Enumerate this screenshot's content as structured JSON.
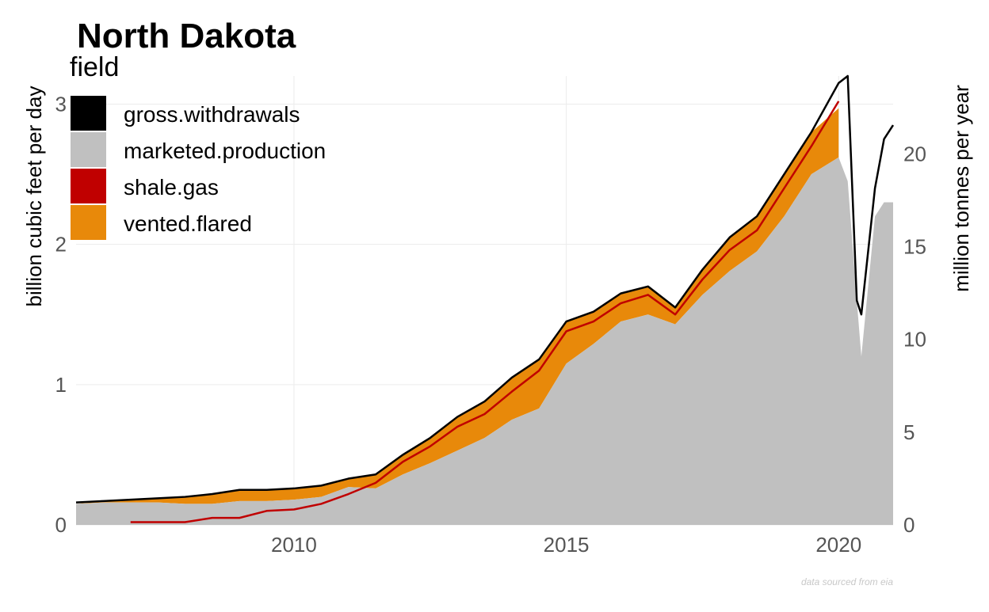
{
  "chart_data": {
    "type": "area",
    "title": "North Dakota",
    "legend_title": "field",
    "legend_position": "top-left",
    "ylabel": "billion cubic feet per day",
    "ylabel_right": "million tonnes per year",
    "caption": "data sourced from eia",
    "x_ticks": [
      "2010",
      "2015",
      "2020"
    ],
    "y_ticks": [
      "0",
      "1",
      "2",
      "3"
    ],
    "y_ticks_right": [
      "0",
      "5",
      "10",
      "15",
      "20"
    ],
    "xlim": [
      "2006-01",
      "2021-01"
    ],
    "ylim": [
      0,
      3.2
    ],
    "ylim_right": [
      0,
      24.2
    ],
    "grid": true,
    "colors": {
      "gross.withdrawals": "#000000",
      "marketed.production": "#c0c0c0",
      "shale.gas": "#c00000",
      "vented.flared": "#e8890a"
    },
    "series": [
      {
        "name": "gross.withdrawals",
        "style": "line",
        "x": [
          "2006-01",
          "2006-07",
          "2007-01",
          "2007-07",
          "2008-01",
          "2008-07",
          "2009-01",
          "2009-07",
          "2010-01",
          "2010-07",
          "2011-01",
          "2011-07",
          "2012-01",
          "2012-07",
          "2013-01",
          "2013-07",
          "2014-01",
          "2014-07",
          "2015-01",
          "2015-07",
          "2016-01",
          "2016-07",
          "2017-01",
          "2017-07",
          "2018-01",
          "2018-07",
          "2019-01",
          "2019-07",
          "2020-01",
          "2020-03",
          "2020-05",
          "2020-06",
          "2020-09",
          "2020-11",
          "2021-01"
        ],
        "values": [
          0.16,
          0.17,
          0.18,
          0.19,
          0.2,
          0.22,
          0.25,
          0.25,
          0.26,
          0.28,
          0.33,
          0.36,
          0.5,
          0.62,
          0.77,
          0.88,
          1.05,
          1.18,
          1.45,
          1.52,
          1.65,
          1.7,
          1.55,
          1.82,
          2.05,
          2.2,
          2.5,
          2.8,
          3.15,
          3.2,
          1.6,
          1.5,
          2.4,
          2.75,
          2.85
        ]
      },
      {
        "name": "vented.flared",
        "style": "area",
        "x": [
          "2006-01",
          "2006-07",
          "2007-01",
          "2007-07",
          "2008-01",
          "2008-07",
          "2009-01",
          "2009-07",
          "2010-01",
          "2010-07",
          "2011-01",
          "2011-07",
          "2012-01",
          "2012-07",
          "2013-01",
          "2013-07",
          "2014-01",
          "2014-07",
          "2015-01",
          "2015-07",
          "2016-01",
          "2016-07",
          "2017-01",
          "2017-07",
          "2018-01",
          "2018-07",
          "2019-01",
          "2019-07",
          "2020-01"
        ],
        "values": [
          0.0,
          0.01,
          0.02,
          0.03,
          0.05,
          0.07,
          0.08,
          0.08,
          0.08,
          0.08,
          0.06,
          0.1,
          0.14,
          0.18,
          0.24,
          0.26,
          0.3,
          0.35,
          0.3,
          0.23,
          0.2,
          0.2,
          0.12,
          0.18,
          0.24,
          0.25,
          0.3,
          0.3,
          0.35
        ]
      },
      {
        "name": "shale.gas",
        "style": "line",
        "x": [
          "2007-01",
          "2007-07",
          "2008-01",
          "2008-07",
          "2009-01",
          "2009-07",
          "2010-01",
          "2010-07",
          "2011-01",
          "2011-07",
          "2012-01",
          "2012-07",
          "2013-01",
          "2013-07",
          "2014-01",
          "2014-07",
          "2015-01",
          "2015-07",
          "2016-01",
          "2016-07",
          "2017-01",
          "2017-07",
          "2018-01",
          "2018-07",
          "2019-01",
          "2019-07",
          "2020-01"
        ],
        "values": [
          0.02,
          0.02,
          0.02,
          0.05,
          0.05,
          0.1,
          0.11,
          0.15,
          0.22,
          0.3,
          0.45,
          0.56,
          0.7,
          0.79,
          0.95,
          1.1,
          1.38,
          1.45,
          1.58,
          1.64,
          1.5,
          1.75,
          1.96,
          2.1,
          2.4,
          2.7,
          3.02
        ]
      },
      {
        "name": "marketed.production",
        "style": "area",
        "x": [
          "2006-01",
          "2006-07",
          "2007-01",
          "2007-07",
          "2008-01",
          "2008-07",
          "2009-01",
          "2009-07",
          "2010-01",
          "2010-07",
          "2011-01",
          "2011-07",
          "2012-01",
          "2012-07",
          "2013-01",
          "2013-07",
          "2014-01",
          "2014-07",
          "2015-01",
          "2015-07",
          "2016-01",
          "2016-07",
          "2017-01",
          "2017-07",
          "2018-01",
          "2018-07",
          "2019-01",
          "2019-07",
          "2020-01",
          "2020-03",
          "2020-05",
          "2020-06",
          "2020-09",
          "2020-11",
          "2021-01"
        ],
        "values": [
          0.15,
          0.16,
          0.16,
          0.16,
          0.15,
          0.15,
          0.17,
          0.17,
          0.18,
          0.2,
          0.27,
          0.26,
          0.36,
          0.44,
          0.53,
          0.62,
          0.75,
          0.83,
          1.15,
          1.29,
          1.45,
          1.5,
          1.43,
          1.64,
          1.81,
          1.95,
          2.2,
          2.5,
          2.62,
          2.45,
          1.6,
          1.2,
          2.2,
          2.3,
          2.3
        ]
      }
    ]
  }
}
